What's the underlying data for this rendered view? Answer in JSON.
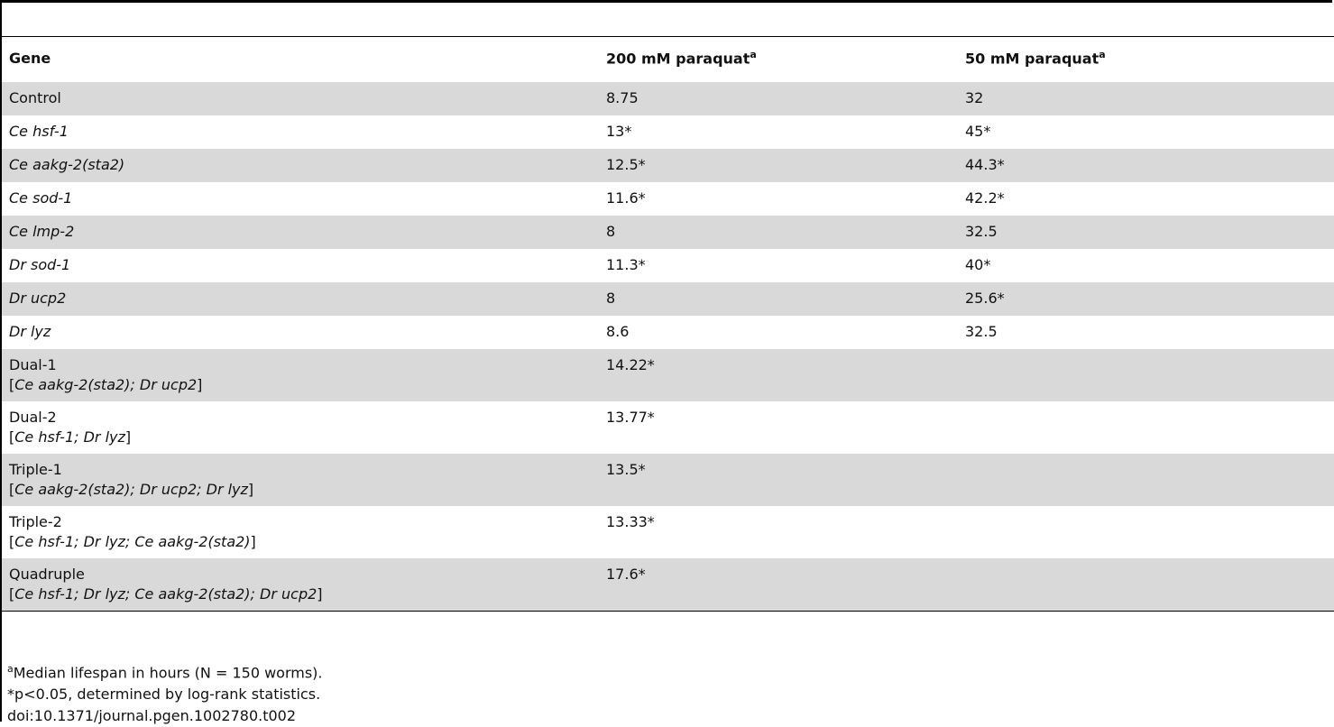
{
  "table": {
    "header": [
      {
        "text": "Gene"
      },
      {
        "text": "200 mM paraquat",
        "sup": "a"
      },
      {
        "text": "50 mM paraquat",
        "sup": "a"
      }
    ],
    "rows": [
      [
        [
          [
            {
              "text": "Control"
            }
          ]
        ],
        "8.75",
        "32"
      ],
      [
        [
          [
            {
              "text": "Ce hsf-1",
              "italic": true
            }
          ]
        ],
        "13*",
        "45*"
      ],
      [
        [
          [
            {
              "text": "Ce aakg-2(sta2)",
              "italic": true
            }
          ]
        ],
        "12.5*",
        "44.3*"
      ],
      [
        [
          [
            {
              "text": "Ce sod-1",
              "italic": true
            }
          ]
        ],
        "11.6*",
        "42.2*"
      ],
      [
        [
          [
            {
              "text": "Ce lmp-2",
              "italic": true
            }
          ]
        ],
        "8",
        "32.5"
      ],
      [
        [
          [
            {
              "text": "Dr sod-1",
              "italic": true
            }
          ]
        ],
        "11.3*",
        "40*"
      ],
      [
        [
          [
            {
              "text": "Dr ucp2",
              "italic": true
            }
          ]
        ],
        "8",
        "25.6*"
      ],
      [
        [
          [
            {
              "text": "Dr lyz",
              "italic": true
            }
          ]
        ],
        "8.6",
        "32.5"
      ],
      [
        [
          [
            {
              "text": "Dual-1"
            }
          ],
          [
            {
              "text": "["
            },
            {
              "text": "Ce aakg-2(sta2); Dr ucp2",
              "italic": true
            },
            {
              "text": "]"
            }
          ]
        ],
        "14.22*"
      ],
      [
        [
          [
            {
              "text": "Dual-2"
            }
          ],
          [
            {
              "text": "["
            },
            {
              "text": "Ce hsf-1; Dr lyz",
              "italic": true
            },
            {
              "text": "]"
            }
          ]
        ],
        "13.77*"
      ],
      [
        [
          [
            {
              "text": "Triple-1"
            }
          ],
          [
            {
              "text": "["
            },
            {
              "text": "Ce aakg-2(sta2); Dr ucp2; Dr lyz",
              "italic": true
            },
            {
              "text": "]"
            }
          ]
        ],
        "13.5*"
      ],
      [
        [
          [
            {
              "text": "Triple-2"
            }
          ],
          [
            {
              "text": "["
            },
            {
              "text": "Ce hsf-1; Dr lyz; Ce aakg-2(sta2)",
              "italic": true
            },
            {
              "text": "]"
            }
          ]
        ],
        "13.33*"
      ],
      [
        [
          [
            {
              "text": "Quadruple"
            }
          ],
          [
            {
              "text": "["
            },
            {
              "text": "Ce hsf-1; Dr lyz; Ce aakg-2(sta2); Dr ucp2",
              "italic": true
            },
            {
              "text": "]"
            }
          ]
        ],
        "17.6*"
      ]
    ]
  },
  "footnotes": [
    {
      "sup": "a",
      "text": "Median lifespan in hours (N = 150 worms)."
    },
    {
      "text": "*p<0.05, determined by log-rank statistics."
    },
    {
      "text": "doi:10.1371/journal.pgen.1002780.t002"
    }
  ]
}
